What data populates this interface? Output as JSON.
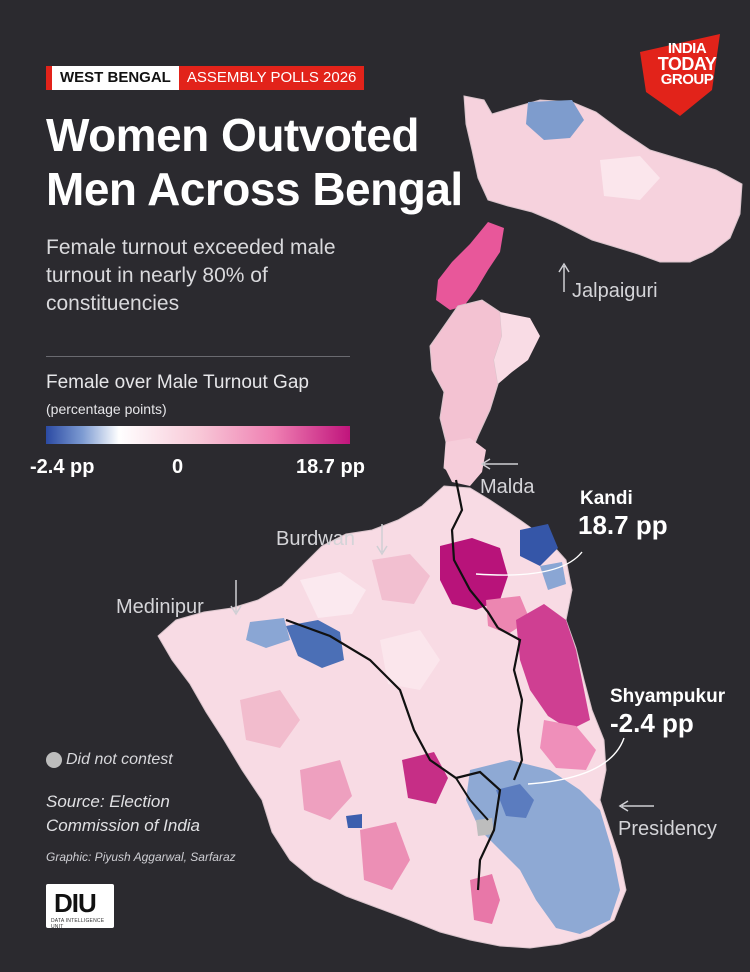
{
  "header": {
    "tag_state": "WEST BENGAL",
    "tag_event": "ASSEMBLY POLLS 2026",
    "title": "Women Outvoted Men Across Bengal",
    "subtitle": "Female turnout exceeded male turnout in nearly 80% of constituencies"
  },
  "brand": {
    "logo_text": [
      "INDIA",
      "TODAY",
      "GROUP"
    ],
    "logo_color": "#e2231a",
    "diu_text": "DIU",
    "diu_sub": "DATA INTELLIGENCE UNIT"
  },
  "legend": {
    "title_main": "Female over Male Turnout Gap",
    "title_small": "(percentage points)",
    "min_label": "-2.4 pp",
    "zero_label": "0",
    "max_label": "18.7 pp",
    "scale_colors": [
      "#2b4aa3",
      "#7d9bd2",
      "#ffffff",
      "#f8c9d8",
      "#ef7fb2",
      "#c0147c"
    ],
    "no_contest_label": "Did not contest",
    "no_contest_color": "#bdbdbd"
  },
  "regions": {
    "jalpaiguri": "Jalpaiguri",
    "malda": "Malda",
    "burdwan": "Burdwan",
    "medinipur": "Medinipur",
    "presidency": "Presidency"
  },
  "callouts": {
    "kandi": {
      "name": "Kandi",
      "value": "18.7 pp"
    },
    "shyampukur": {
      "name": "Shyampukur",
      "value": "-2.4 pp"
    }
  },
  "source": {
    "text": "Source: Election Commission of India",
    "credit": "Graphic: Piyush Aggarwal, Sarfaraz"
  }
}
